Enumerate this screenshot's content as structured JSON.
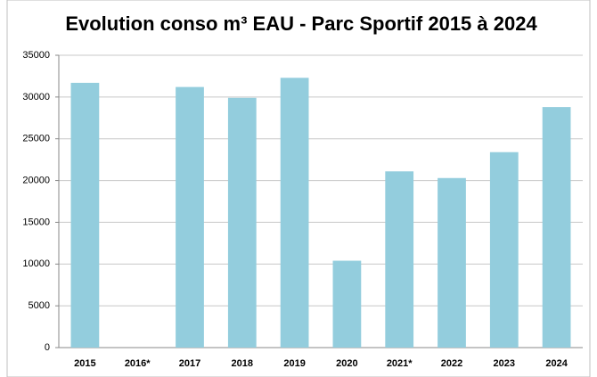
{
  "chart_data": {
    "type": "bar",
    "title": "Evolution conso m³ EAU - Parc Sportif 2015 à 2024",
    "categories": [
      "2015",
      "2016*",
      "2017",
      "2018",
      "2019",
      "2020",
      "2021*",
      "2022",
      "2023",
      "2024"
    ],
    "values": [
      31700,
      0,
      31200,
      29900,
      32300,
      10400,
      21100,
      20300,
      23400,
      28800
    ],
    "color": "#93cddd",
    "ylim": [
      0,
      35000
    ],
    "yticks": [
      0,
      5000,
      10000,
      15000,
      20000,
      25000,
      30000,
      35000
    ],
    "grid": true
  }
}
